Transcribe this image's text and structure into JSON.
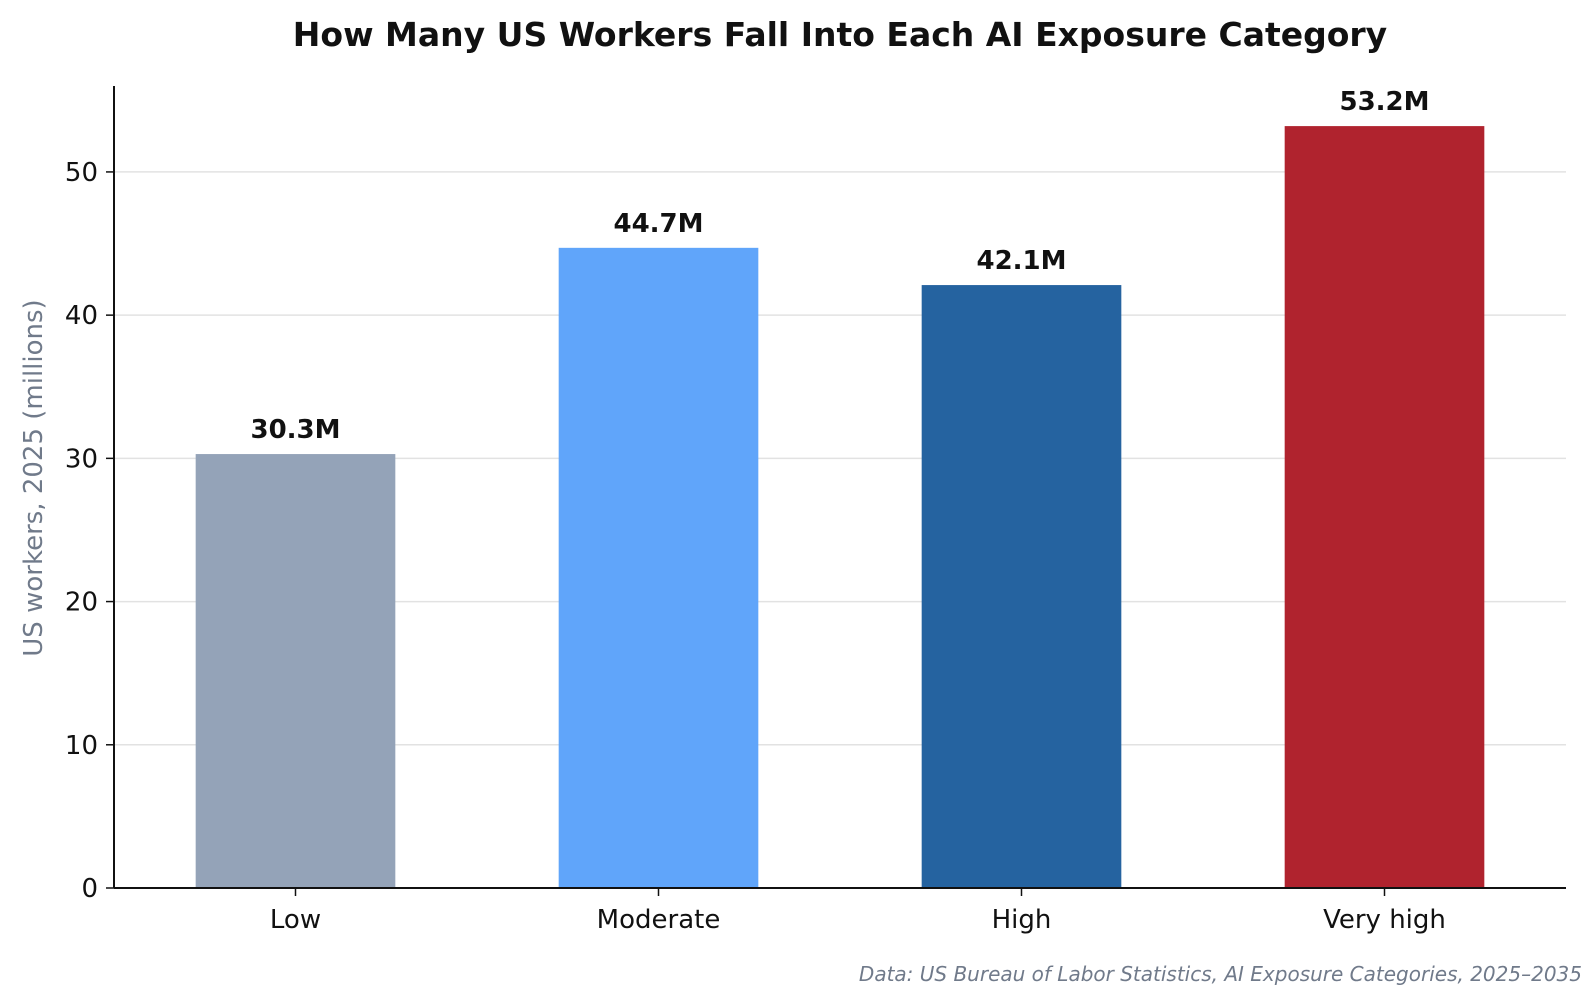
{
  "chart_data": {
    "type": "bar",
    "title": "How Many US Workers Fall Into Each AI Exposure Category",
    "xlabel": "",
    "ylabel": "US workers, 2025 (millions)",
    "categories": [
      "Low",
      "Moderate",
      "High",
      "Very high"
    ],
    "values": [
      30.3,
      44.7,
      42.1,
      53.2
    ],
    "value_labels": [
      "30.3M",
      "44.7M",
      "42.1M",
      "53.2M"
    ],
    "colors": [
      "#94a3b8",
      "#60a5fa",
      "#2563a0",
      "#b0232e"
    ],
    "ylim": [
      0,
      56
    ],
    "yticks": [
      0,
      10,
      20,
      30,
      40,
      50
    ],
    "ytick_labels": [
      "0",
      "10",
      "20",
      "30",
      "40",
      "50"
    ],
    "grid": "horizontal",
    "legend": "none"
  },
  "source_note": "Data: US Bureau of Labor Statistics, AI Exposure Categories, 2025–2035"
}
